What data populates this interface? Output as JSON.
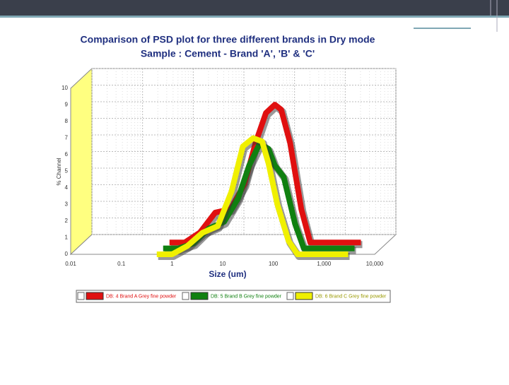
{
  "chart_data": {
    "type": "line",
    "title": "Comparison of PSD plot for three different brands in Dry mode",
    "subtitle": "Sample : Cement - Brand 'A', 'B' & 'C'",
    "x_label": "Size (um)",
    "y_label": "% Channel",
    "x_scale": "log",
    "grid": true,
    "xlim": [
      0.01,
      10000
    ],
    "ylim": [
      0,
      10
    ],
    "xticks": [
      0.01,
      0.1,
      1,
      10,
      100,
      {
        "value": 1000,
        "label": "1,000"
      },
      {
        "value": 10000,
        "label": "10,000"
      }
    ],
    "yticks": [
      0,
      1,
      2,
      3,
      4,
      5,
      6,
      7,
      8,
      9,
      10
    ],
    "x": [
      0.5,
      1,
      2,
      4,
      8,
      15,
      25,
      40,
      60,
      80,
      120,
      200,
      300,
      1000,
      3000
    ],
    "series": [
      {
        "name": "DB: 4 Brand  A Grey fine powder",
        "color": "#e01010",
        "values": [
          0,
          0,
          0.6,
          1.8,
          2.0,
          3.5,
          6.0,
          7.8,
          8.3,
          8.0,
          6.0,
          2.0,
          0,
          0,
          0
        ]
      },
      {
        "name": "DB: 5 Brand  B Grey fine powder",
        "color": "#108010",
        "values": [
          0,
          0,
          0.3,
          1.2,
          1.6,
          3.0,
          5.0,
          6.3,
          6.0,
          5.0,
          4.3,
          1.5,
          0,
          0,
          0
        ]
      },
      {
        "name": "DB: 6 Brand  C Grey fine powder",
        "color": "#f0f000",
        "values": [
          0,
          0,
          0.5,
          1.3,
          1.7,
          3.8,
          6.5,
          7.0,
          6.8,
          5.5,
          3.0,
          0.8,
          0,
          0,
          0
        ]
      }
    ]
  }
}
